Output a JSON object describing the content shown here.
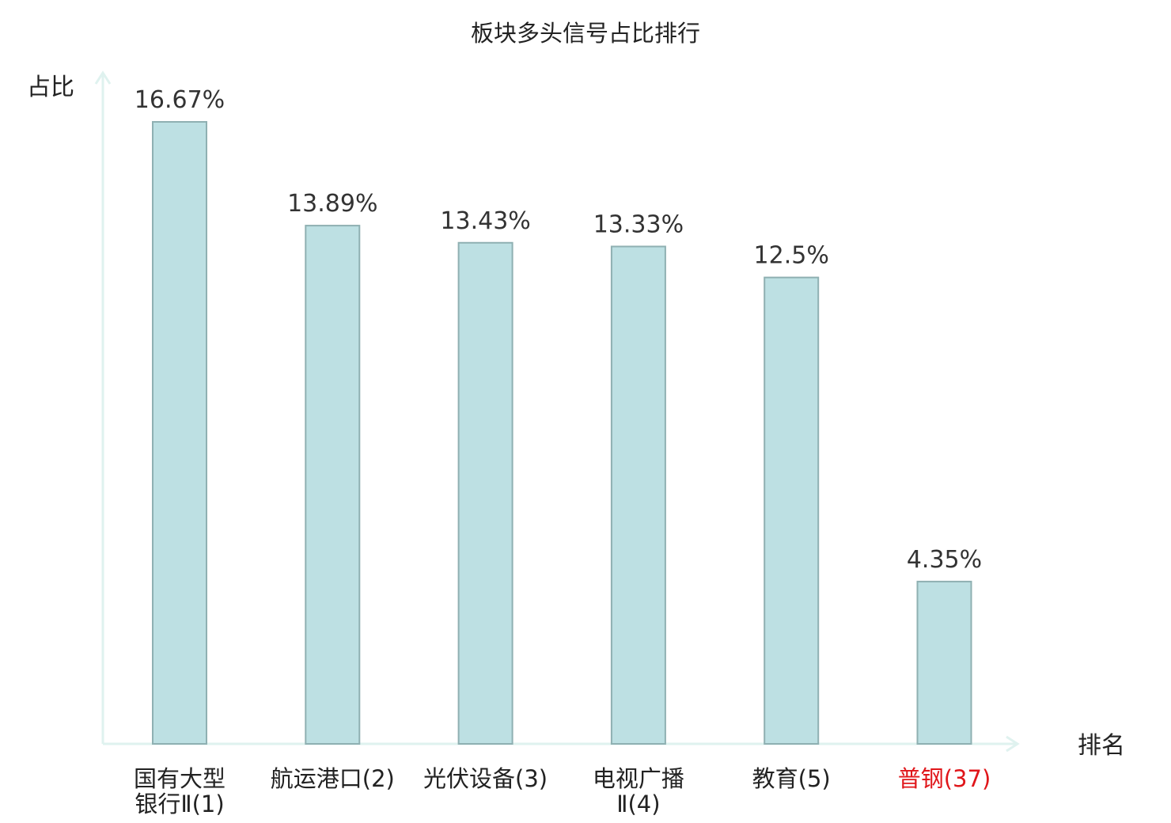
{
  "chart_data": {
    "type": "bar",
    "title": "板块多头信号占比排行",
    "ylabel": "占比",
    "xlabel": "排名",
    "ylim": [
      0,
      18
    ],
    "grid": false,
    "categories": [
      {
        "lines": [
          "国有大型",
          "银行Ⅱ(1)"
        ],
        "highlight": false
      },
      {
        "lines": [
          "航运港口(2)"
        ],
        "highlight": false
      },
      {
        "lines": [
          "光伏设备(3)"
        ],
        "highlight": false
      },
      {
        "lines": [
          "电视广播",
          "Ⅱ(4)"
        ],
        "highlight": false
      },
      {
        "lines": [
          "教育(5)"
        ],
        "highlight": false
      },
      {
        "lines": [
          "普钢(37)"
        ],
        "highlight": true
      }
    ],
    "values": [
      16.67,
      13.89,
      13.43,
      13.33,
      12.5,
      4.35
    ],
    "value_labels": [
      "16.67%",
      "13.89%",
      "13.43%",
      "13.33%",
      "12.5%",
      "4.35%"
    ],
    "colors": {
      "bar_fill": "#bde0e3",
      "bar_stroke": "#8fb0b2",
      "axis": "#dff2ef",
      "text": "#222222",
      "value_text": "#333333",
      "highlight_text": "#e0161a"
    }
  }
}
